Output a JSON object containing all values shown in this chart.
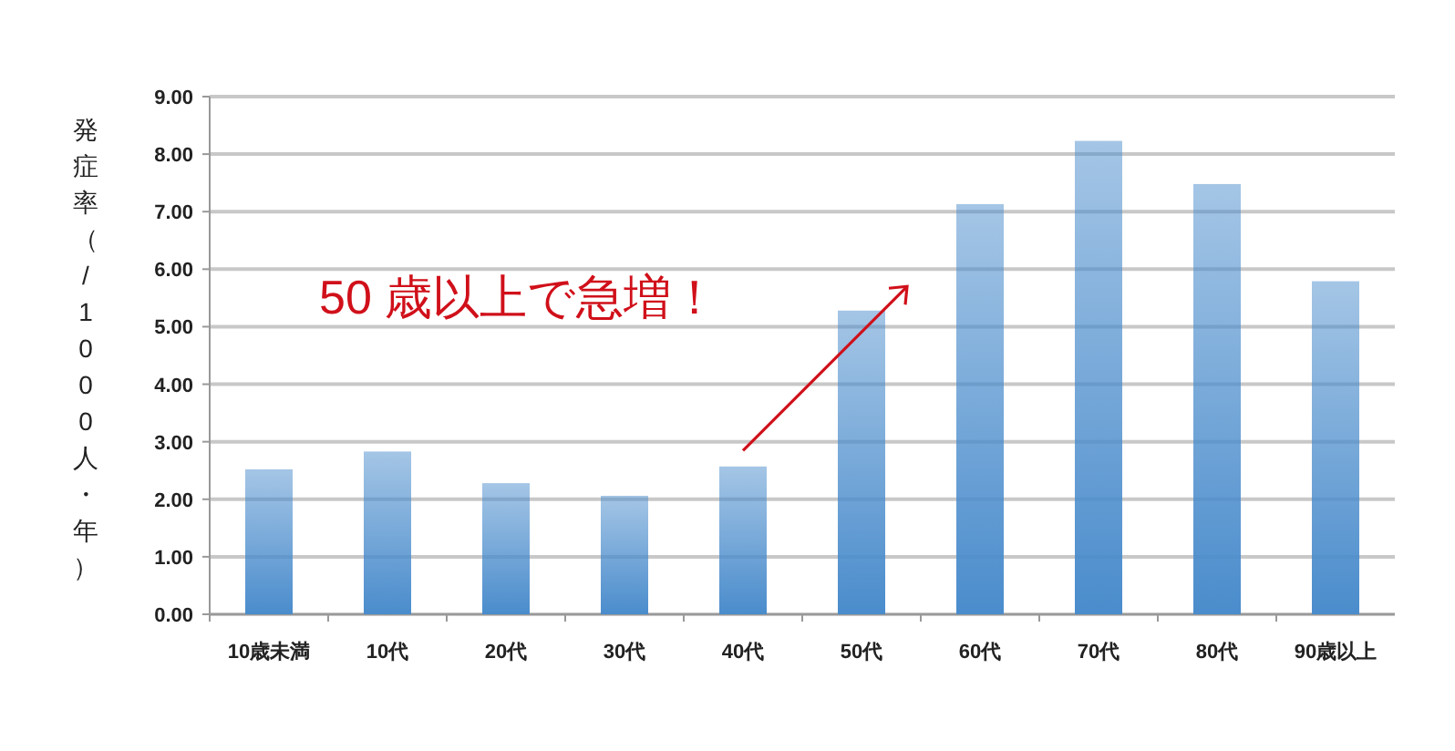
{
  "chart_data": {
    "type": "bar",
    "ylabel": "発症率（/1000人・年）",
    "categories": [
      "10歳未満",
      "10代",
      "20代",
      "30代",
      "40代",
      "50代",
      "60代",
      "70代",
      "80代",
      "90歳以上"
    ],
    "values": [
      2.52,
      2.83,
      2.28,
      2.06,
      2.57,
      5.28,
      7.13,
      8.23,
      7.48,
      5.79
    ],
    "color": "#4a8ccc",
    "ylim": [
      0,
      9
    ],
    "yticks": [
      {
        "value": 0,
        "label": "0.00"
      },
      {
        "value": 1,
        "label": "1.00"
      },
      {
        "value": 2,
        "label": "2.00"
      },
      {
        "value": 3,
        "label": "3.00"
      },
      {
        "value": 4,
        "label": "4.00"
      },
      {
        "value": 5,
        "label": "5.00"
      },
      {
        "value": 6,
        "label": "6.00"
      },
      {
        "value": 7,
        "label": "7.00"
      },
      {
        "value": 8,
        "label": "8.00"
      },
      {
        "value": 9,
        "label": "9.00"
      }
    ],
    "grid": "y",
    "annotations": [
      "50 歳以上で急増！"
    ]
  }
}
